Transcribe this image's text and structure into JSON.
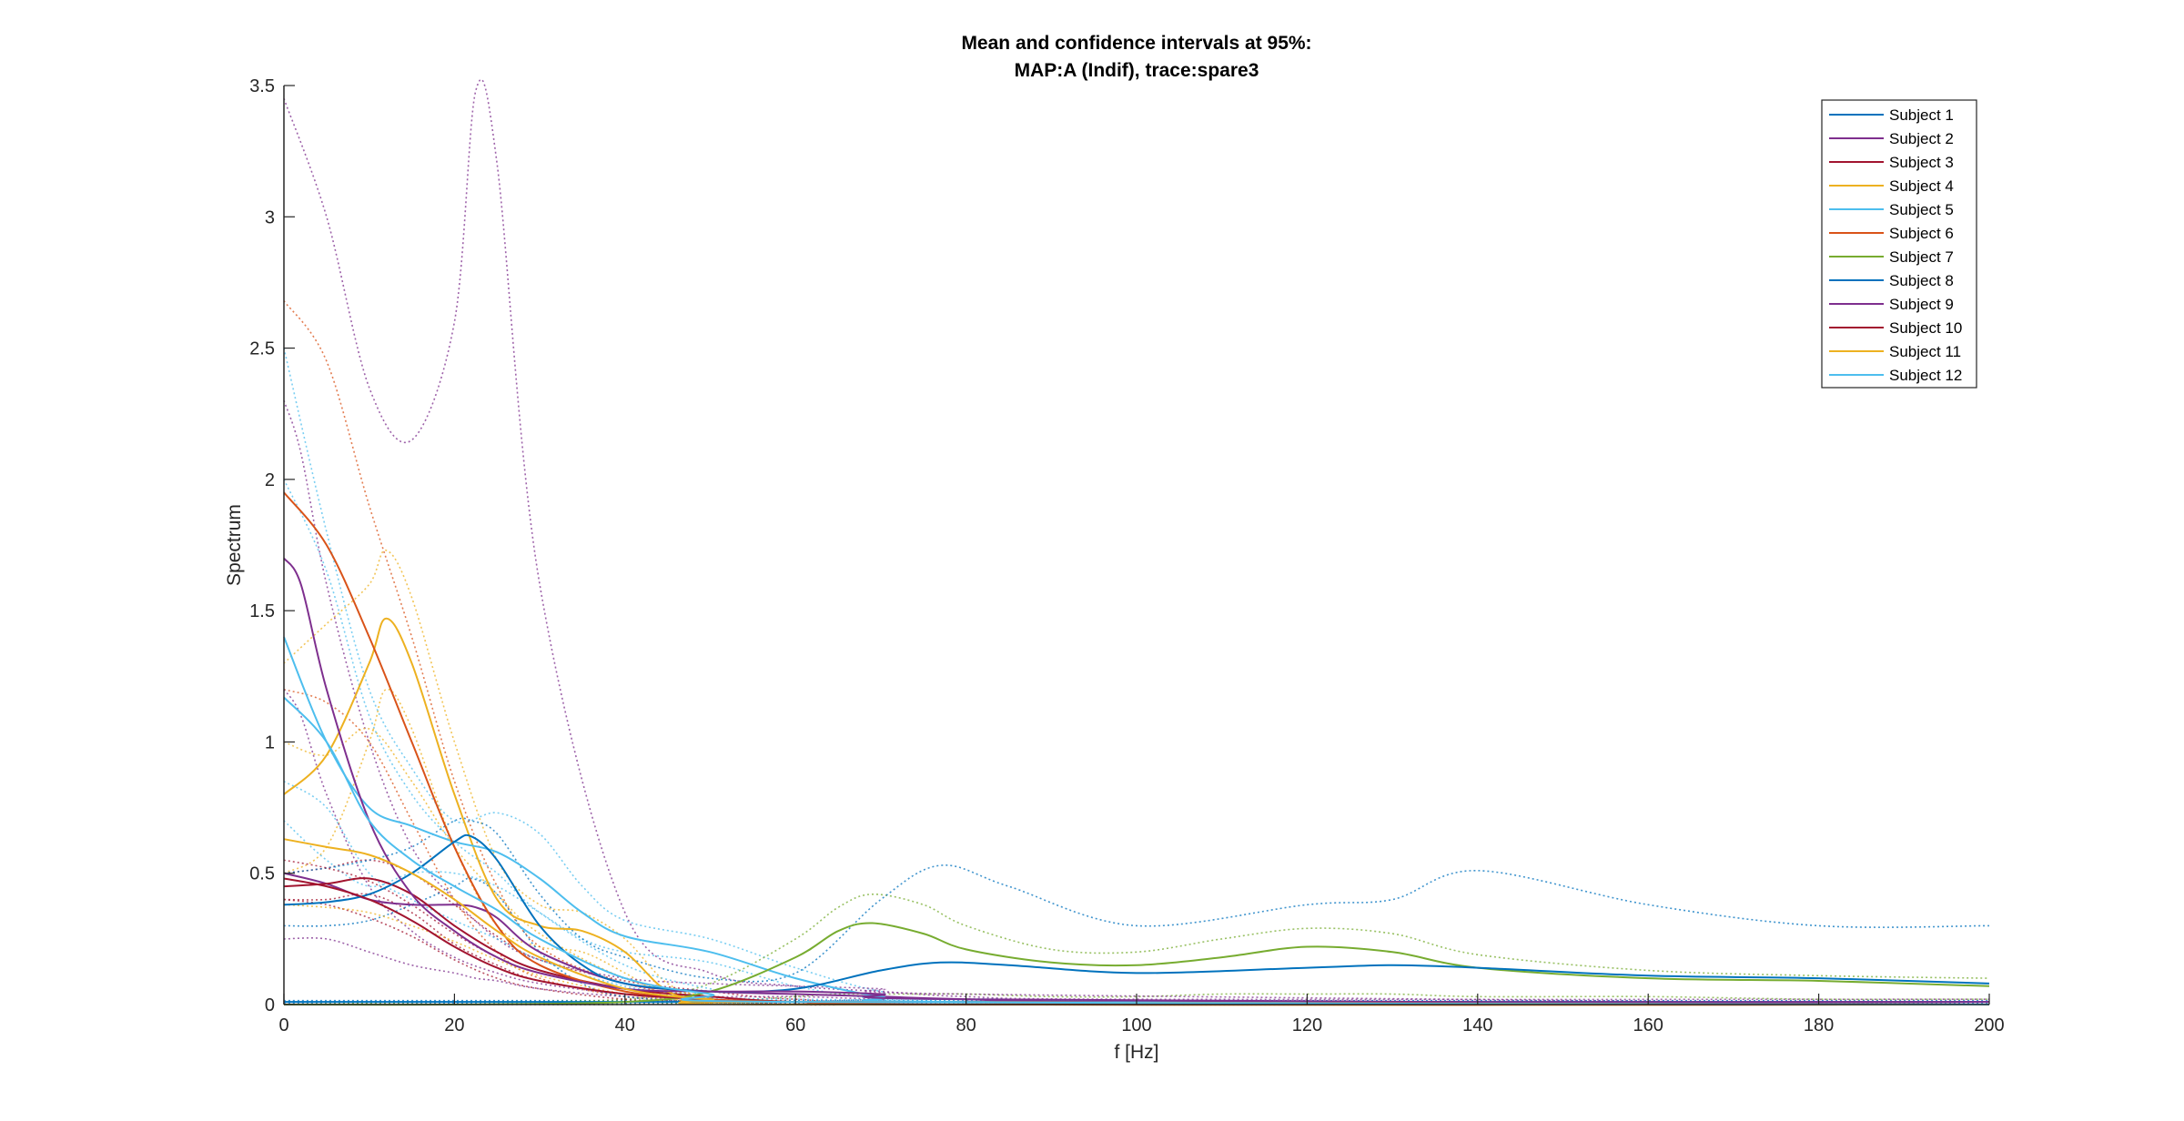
{
  "chart_data": {
    "type": "line",
    "title": "Mean and confidence intervals at 95%:",
    "subtitle": "MAP:A (Indif), trace:spare3",
    "xlabel": "f [Hz]",
    "ylabel": "Spectrum",
    "xlim": [
      0,
      200
    ],
    "ylim": [
      0,
      3.5
    ],
    "xticks": [
      0,
      20,
      40,
      60,
      80,
      100,
      120,
      140,
      160,
      180,
      200
    ],
    "xtick_labels": [
      "0",
      "20",
      "40",
      "60",
      "80",
      "100",
      "120",
      "140",
      "160",
      "180",
      "200"
    ],
    "yticks": [
      0,
      0.5,
      1,
      1.5,
      2,
      2.5,
      3,
      3.5
    ],
    "ytick_labels": [
      "0",
      "0.5",
      "1",
      "1.5",
      "2",
      "2.5",
      "3",
      "3.5"
    ],
    "grid": false,
    "legend_position": "top-right",
    "series": [
      {
        "name": "Subject 1",
        "color": "#0072BD",
        "x": [
          0,
          20,
          40,
          60,
          80,
          100,
          120,
          140,
          160,
          180,
          200
        ],
        "mean": [
          0.01,
          0.01,
          0.01,
          0.01,
          0.01,
          0.01,
          0.01,
          0.01,
          0.01,
          0.01,
          0.01
        ],
        "ci_upper": [
          0.015,
          0.015,
          0.015,
          0.015,
          0.015,
          0.015,
          0.015,
          0.015,
          0.015,
          0.015,
          0.015
        ],
        "ci_lower": [
          0.005,
          0.005,
          0.005,
          0.005,
          0.005,
          0.005,
          0.005,
          0.005,
          0.005,
          0.005,
          0.005
        ]
      },
      {
        "name": "Subject 2",
        "color": "#7E2F8E",
        "x": [
          0,
          5,
          10,
          15,
          20,
          22.5,
          25,
          30,
          40,
          50,
          60,
          70,
          80,
          100,
          200
        ],
        "mean": [
          0.5,
          0.46,
          0.4,
          0.38,
          0.38,
          0.37,
          0.33,
          0.2,
          0.08,
          0.05,
          0.04,
          0.03,
          0.02,
          0.01,
          0.01
        ],
        "ci_upper": [
          3.45,
          3.0,
          2.35,
          2.15,
          2.6,
          3.48,
          3.2,
          1.6,
          0.35,
          0.12,
          0.07,
          0.05,
          0.03,
          0.02,
          0.02
        ],
        "ci_lower": [
          0.25,
          0.25,
          0.2,
          0.15,
          0.12,
          0.1,
          0.09,
          0.06,
          0.03,
          0.02,
          0.01,
          0.01,
          0.01,
          0.0,
          0.0
        ]
      },
      {
        "name": "Subject 3",
        "color": "#A2142F",
        "x": [
          0,
          5,
          10,
          15,
          20,
          25,
          30,
          40,
          50,
          60,
          80,
          200
        ],
        "mean": [
          0.45,
          0.46,
          0.48,
          0.42,
          0.3,
          0.2,
          0.13,
          0.06,
          0.03,
          0.01,
          0.0,
          0.0
        ],
        "ci_upper": [
          0.5,
          0.52,
          0.55,
          0.5,
          0.38,
          0.26,
          0.17,
          0.09,
          0.05,
          0.02,
          0.01,
          0.01
        ],
        "ci_lower": [
          0.4,
          0.4,
          0.42,
          0.35,
          0.23,
          0.15,
          0.09,
          0.04,
          0.02,
          0.0,
          0.0,
          0.0
        ]
      },
      {
        "name": "Subject 4",
        "color": "#EDB120",
        "x": [
          0,
          5,
          10,
          12,
          15,
          20,
          25,
          30,
          35,
          40,
          45,
          50,
          60,
          200
        ],
        "mean": [
          0.8,
          0.95,
          1.3,
          1.47,
          1.3,
          0.8,
          0.4,
          0.3,
          0.28,
          0.2,
          0.05,
          0.02,
          0.0,
          0.0
        ],
        "ci_upper": [
          1.3,
          1.45,
          1.6,
          1.73,
          1.55,
          1.0,
          0.55,
          0.38,
          0.35,
          0.25,
          0.08,
          0.03,
          0.01,
          0.0
        ],
        "ci_lower": [
          0.5,
          0.6,
          1.0,
          1.2,
          1.05,
          0.6,
          0.3,
          0.22,
          0.2,
          0.12,
          0.03,
          0.01,
          0.0,
          0.0
        ]
      },
      {
        "name": "Subject 5",
        "color": "#4DBEEE",
        "x": [
          0,
          5,
          10,
          15,
          20,
          25,
          30,
          35,
          40,
          50,
          60,
          70,
          80,
          200
        ],
        "mean": [
          1.4,
          1.0,
          0.75,
          0.68,
          0.62,
          0.58,
          0.48,
          0.35,
          0.26,
          0.2,
          0.1,
          0.03,
          0.01,
          0.0
        ],
        "ci_upper": [
          2.5,
          1.8,
          1.2,
          0.9,
          0.7,
          0.73,
          0.65,
          0.45,
          0.32,
          0.25,
          0.14,
          0.05,
          0.02,
          0.0
        ],
        "ci_lower": [
          0.7,
          0.55,
          0.45,
          0.5,
          0.5,
          0.45,
          0.35,
          0.25,
          0.2,
          0.16,
          0.07,
          0.02,
          0.0,
          0.0
        ]
      },
      {
        "name": "Subject 6",
        "color": "#D95319",
        "x": [
          0,
          5,
          10,
          15,
          20,
          25,
          30,
          40,
          50,
          60,
          80,
          200
        ],
        "mean": [
          1.95,
          1.75,
          1.4,
          1.0,
          0.6,
          0.3,
          0.15,
          0.05,
          0.02,
          0.01,
          0.0,
          0.0
        ],
        "ci_upper": [
          2.68,
          2.45,
          1.9,
          1.4,
          0.85,
          0.45,
          0.22,
          0.08,
          0.03,
          0.01,
          0.0,
          0.0
        ],
        "ci_lower": [
          1.2,
          1.15,
          1.0,
          0.7,
          0.4,
          0.2,
          0.1,
          0.03,
          0.01,
          0.0,
          0.0,
          0.0
        ]
      },
      {
        "name": "Subject 7",
        "color": "#77AC30",
        "x": [
          0,
          20,
          40,
          50,
          60,
          65,
          69,
          75,
          80,
          90,
          100,
          110,
          120,
          130,
          140,
          160,
          180,
          200
        ],
        "mean": [
          0.0,
          0.0,
          0.01,
          0.05,
          0.18,
          0.28,
          0.31,
          0.27,
          0.21,
          0.16,
          0.15,
          0.18,
          0.22,
          0.2,
          0.14,
          0.1,
          0.09,
          0.07
        ],
        "ci_upper": [
          0.0,
          0.01,
          0.02,
          0.08,
          0.25,
          0.37,
          0.42,
          0.38,
          0.3,
          0.21,
          0.2,
          0.25,
          0.29,
          0.27,
          0.19,
          0.13,
          0.11,
          0.1
        ],
        "ci_lower": [
          0.0,
          0.0,
          0.0,
          0.01,
          0.03,
          0.04,
          0.04,
          0.04,
          0.04,
          0.03,
          0.03,
          0.04,
          0.04,
          0.04,
          0.03,
          0.03,
          0.02,
          0.02
        ]
      },
      {
        "name": "Subject 8",
        "color": "#0072BD",
        "x": [
          0,
          5,
          10,
          15,
          20,
          22,
          25,
          30,
          35,
          40,
          50,
          60,
          70,
          77,
          85,
          100,
          120,
          130,
          140,
          160,
          180,
          200
        ],
        "mean": [
          0.38,
          0.39,
          0.42,
          0.5,
          0.62,
          0.64,
          0.55,
          0.3,
          0.15,
          0.08,
          0.05,
          0.06,
          0.13,
          0.16,
          0.15,
          0.12,
          0.14,
          0.15,
          0.14,
          0.11,
          0.1,
          0.08
        ],
        "ci_upper": [
          0.5,
          0.52,
          0.55,
          0.6,
          0.7,
          0.7,
          0.65,
          0.42,
          0.25,
          0.18,
          0.1,
          0.12,
          0.4,
          0.53,
          0.45,
          0.3,
          0.38,
          0.4,
          0.51,
          0.38,
          0.3,
          0.3
        ],
        "ci_lower": [
          0.3,
          0.3,
          0.32,
          0.38,
          0.45,
          0.48,
          0.42,
          0.2,
          0.08,
          0.03,
          0.01,
          0.01,
          0.02,
          0.02,
          0.02,
          0.01,
          0.01,
          0.01,
          0.01,
          0.0,
          0.0,
          0.0
        ]
      },
      {
        "name": "Subject 9",
        "color": "#7E2F8E",
        "x": [
          0,
          2,
          5,
          10,
          15,
          20,
          25,
          30,
          40,
          50,
          60,
          70,
          80,
          200
        ],
        "mean": [
          1.7,
          1.6,
          1.2,
          0.7,
          0.42,
          0.28,
          0.18,
          0.12,
          0.06,
          0.05,
          0.05,
          0.04,
          0.02,
          0.0
        ],
        "ci_upper": [
          2.3,
          2.1,
          1.6,
          1.0,
          0.6,
          0.4,
          0.25,
          0.17,
          0.1,
          0.08,
          0.07,
          0.06,
          0.04,
          0.0
        ],
        "ci_lower": [
          1.2,
          1.1,
          0.8,
          0.45,
          0.28,
          0.18,
          0.12,
          0.08,
          0.04,
          0.03,
          0.03,
          0.02,
          0.01,
          0.0
        ]
      },
      {
        "name": "Subject 10",
        "color": "#A2142F",
        "x": [
          0,
          5,
          10,
          15,
          20,
          25,
          30,
          40,
          50,
          60,
          200
        ],
        "mean": [
          0.48,
          0.45,
          0.4,
          0.32,
          0.22,
          0.14,
          0.09,
          0.04,
          0.02,
          0.01,
          0.0
        ],
        "ci_upper": [
          0.55,
          0.52,
          0.47,
          0.38,
          0.27,
          0.18,
          0.12,
          0.06,
          0.03,
          0.01,
          0.0
        ],
        "ci_lower": [
          0.4,
          0.38,
          0.33,
          0.26,
          0.17,
          0.1,
          0.06,
          0.02,
          0.01,
          0.0,
          0.0
        ]
      },
      {
        "name": "Subject 11",
        "color": "#EDB120",
        "x": [
          0,
          5,
          10,
          15,
          20,
          25,
          30,
          40,
          50,
          60,
          200
        ],
        "mean": [
          0.63,
          0.6,
          0.57,
          0.5,
          0.4,
          0.28,
          0.18,
          0.06,
          0.02,
          0.01,
          0.0
        ],
        "ci_upper": [
          1.0,
          0.95,
          1.05,
          0.85,
          0.6,
          0.42,
          0.27,
          0.1,
          0.03,
          0.01,
          0.0
        ],
        "ci_lower": [
          0.38,
          0.37,
          0.35,
          0.3,
          0.24,
          0.17,
          0.11,
          0.04,
          0.01,
          0.0,
          0.0
        ]
      },
      {
        "name": "Subject 12",
        "color": "#4DBEEE",
        "x": [
          0,
          5,
          10,
          15,
          20,
          25,
          30,
          40,
          50,
          60,
          200
        ],
        "mean": [
          1.17,
          1.0,
          0.7,
          0.55,
          0.45,
          0.36,
          0.25,
          0.1,
          0.04,
          0.01,
          0.0
        ],
        "ci_upper": [
          2.0,
          1.65,
          1.1,
          0.8,
          0.62,
          0.5,
          0.35,
          0.15,
          0.06,
          0.02,
          0.0
        ],
        "ci_lower": [
          0.85,
          0.75,
          0.5,
          0.4,
          0.32,
          0.25,
          0.17,
          0.07,
          0.03,
          0.01,
          0.0
        ]
      }
    ]
  }
}
